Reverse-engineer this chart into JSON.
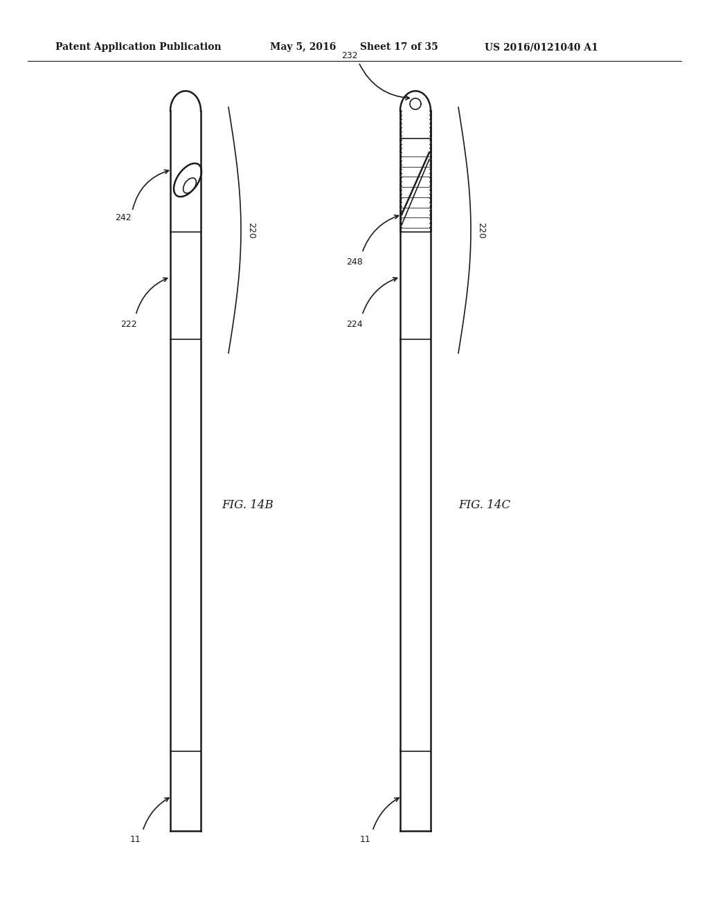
{
  "bg_color": "#ffffff",
  "header_text": "Patent Application Publication",
  "header_date": "May 5, 2016",
  "header_sheet": "Sheet 17 of 35",
  "header_patent": "US 2016/0121040 A1",
  "fig_label_left": "FIG. 14B",
  "fig_label_right": "FIG. 14C",
  "label_11_left": "11",
  "label_11_right": "11",
  "label_220_left": "220",
  "label_220_right": "220",
  "label_222": "222",
  "label_242": "242",
  "label_224": "224",
  "label_248": "248",
  "label_232": "232",
  "line_color": "#1a1a1a"
}
